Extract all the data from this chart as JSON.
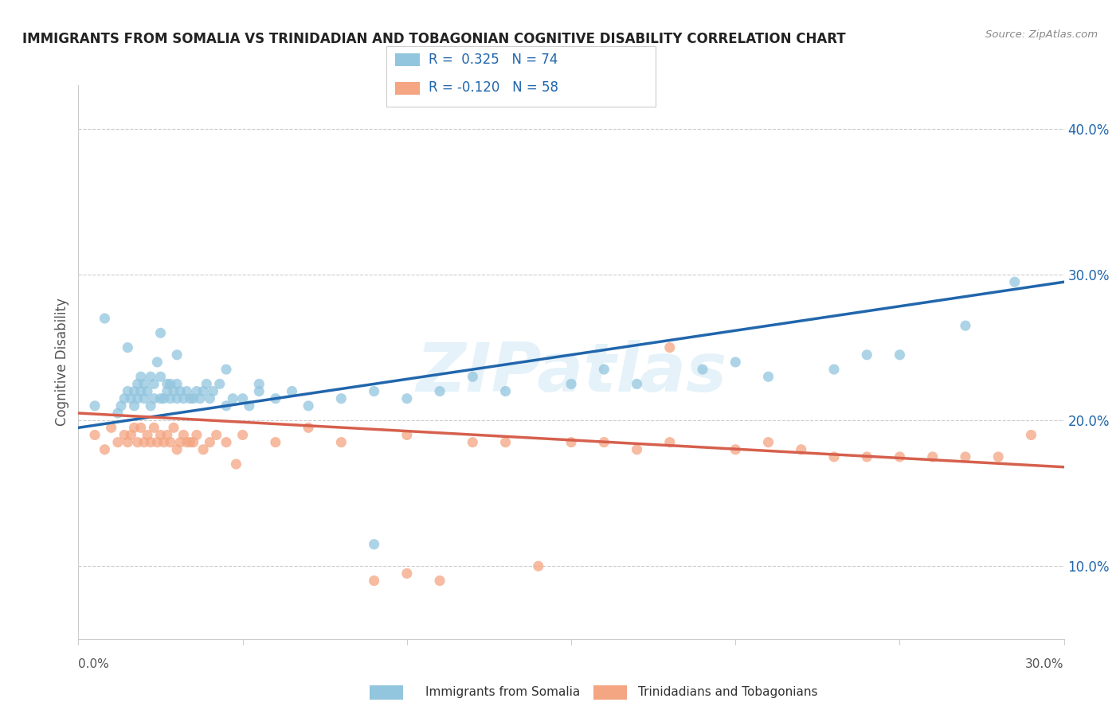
{
  "title": "IMMIGRANTS FROM SOMALIA VS TRINIDADIAN AND TOBAGONIAN COGNITIVE DISABILITY CORRELATION CHART",
  "source": "Source: ZipAtlas.com",
  "ylabel": "Cognitive Disability",
  "xlim": [
    0.0,
    0.3
  ],
  "ylim": [
    0.05,
    0.43
  ],
  "yticks": [
    0.1,
    0.2,
    0.3,
    0.4
  ],
  "ytick_labels": [
    "10.0%",
    "20.0%",
    "30.0%",
    "40.0%"
  ],
  "xtick_vals": [
    0.0,
    0.05,
    0.1,
    0.15,
    0.2,
    0.25,
    0.3
  ],
  "watermark": "ZIPatlas",
  "legend1_r": "0.325",
  "legend1_n": "74",
  "legend2_r": "-0.120",
  "legend2_n": "58",
  "blue_color": "#92c5de",
  "pink_color": "#f4a582",
  "line_blue": "#2166ac",
  "line_pink": "#d6604d",
  "blue_scatter_x": [
    0.005,
    0.008,
    0.012,
    0.013,
    0.014,
    0.015,
    0.016,
    0.017,
    0.017,
    0.018,
    0.018,
    0.019,
    0.019,
    0.02,
    0.02,
    0.021,
    0.022,
    0.022,
    0.023,
    0.023,
    0.024,
    0.025,
    0.025,
    0.026,
    0.027,
    0.027,
    0.028,
    0.028,
    0.029,
    0.03,
    0.03,
    0.031,
    0.032,
    0.033,
    0.034,
    0.035,
    0.036,
    0.037,
    0.038,
    0.039,
    0.04,
    0.041,
    0.043,
    0.045,
    0.047,
    0.05,
    0.052,
    0.055,
    0.06,
    0.065,
    0.07,
    0.08,
    0.09,
    0.1,
    0.11,
    0.13,
    0.15,
    0.17,
    0.19,
    0.21,
    0.23,
    0.25,
    0.27,
    0.285,
    0.015,
    0.025,
    0.03,
    0.045,
    0.055,
    0.09,
    0.12,
    0.16,
    0.2,
    0.24
  ],
  "blue_scatter_y": [
    0.21,
    0.27,
    0.205,
    0.21,
    0.215,
    0.22,
    0.215,
    0.21,
    0.22,
    0.215,
    0.225,
    0.22,
    0.23,
    0.215,
    0.225,
    0.22,
    0.21,
    0.23,
    0.215,
    0.225,
    0.24,
    0.215,
    0.23,
    0.215,
    0.22,
    0.225,
    0.215,
    0.225,
    0.22,
    0.215,
    0.225,
    0.22,
    0.215,
    0.22,
    0.215,
    0.215,
    0.22,
    0.215,
    0.22,
    0.225,
    0.215,
    0.22,
    0.225,
    0.21,
    0.215,
    0.215,
    0.21,
    0.22,
    0.215,
    0.22,
    0.21,
    0.215,
    0.115,
    0.215,
    0.22,
    0.22,
    0.225,
    0.225,
    0.235,
    0.23,
    0.235,
    0.245,
    0.265,
    0.295,
    0.25,
    0.26,
    0.245,
    0.235,
    0.225,
    0.22,
    0.23,
    0.235,
    0.24,
    0.245
  ],
  "pink_scatter_x": [
    0.005,
    0.008,
    0.01,
    0.012,
    0.014,
    0.015,
    0.016,
    0.017,
    0.018,
    0.019,
    0.02,
    0.021,
    0.022,
    0.023,
    0.024,
    0.025,
    0.026,
    0.027,
    0.028,
    0.029,
    0.03,
    0.031,
    0.032,
    0.033,
    0.034,
    0.035,
    0.036,
    0.038,
    0.04,
    0.042,
    0.045,
    0.048,
    0.05,
    0.06,
    0.07,
    0.08,
    0.09,
    0.1,
    0.11,
    0.12,
    0.13,
    0.15,
    0.16,
    0.17,
    0.18,
    0.2,
    0.21,
    0.22,
    0.23,
    0.24,
    0.25,
    0.26,
    0.27,
    0.28,
    0.1,
    0.14,
    0.18,
    0.29
  ],
  "pink_scatter_y": [
    0.19,
    0.18,
    0.195,
    0.185,
    0.19,
    0.185,
    0.19,
    0.195,
    0.185,
    0.195,
    0.185,
    0.19,
    0.185,
    0.195,
    0.185,
    0.19,
    0.185,
    0.19,
    0.185,
    0.195,
    0.18,
    0.185,
    0.19,
    0.185,
    0.185,
    0.185,
    0.19,
    0.18,
    0.185,
    0.19,
    0.185,
    0.17,
    0.19,
    0.185,
    0.195,
    0.185,
    0.09,
    0.19,
    0.09,
    0.185,
    0.185,
    0.185,
    0.185,
    0.18,
    0.185,
    0.18,
    0.185,
    0.18,
    0.175,
    0.175,
    0.175,
    0.175,
    0.175,
    0.175,
    0.095,
    0.1,
    0.25,
    0.19
  ],
  "blue_trend_x": [
    0.0,
    0.3
  ],
  "blue_trend_y": [
    0.195,
    0.295
  ],
  "pink_trend_x": [
    0.0,
    0.3
  ],
  "pink_trend_y": [
    0.205,
    0.168
  ],
  "legend_label_blue": "Immigrants from Somalia",
  "legend_label_pink": "Trinidadians and Tobagonians",
  "background_color": "#ffffff",
  "grid_color": "#cccccc"
}
